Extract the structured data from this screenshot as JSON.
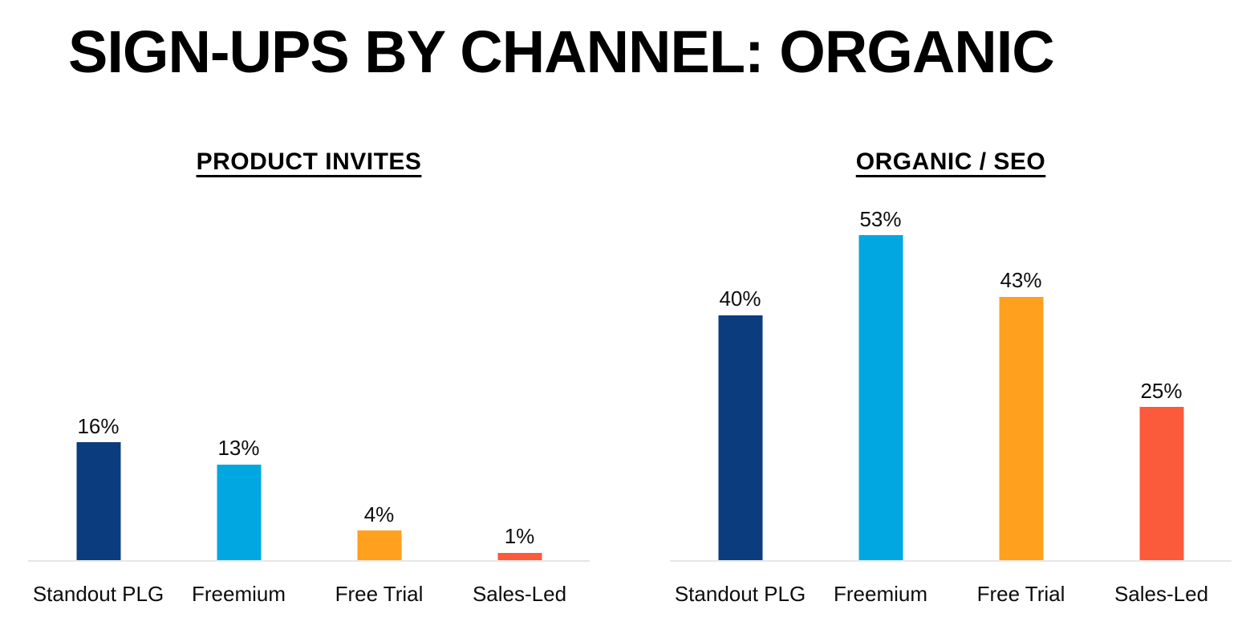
{
  "page": {
    "title": "SIGN-UPS BY CHANNEL: ORGANIC",
    "background": "#ffffff"
  },
  "styles": {
    "axis_line_color": "#e7e7e7",
    "text_color": "#000000"
  },
  "chart_data": [
    {
      "type": "bar",
      "title": "PRODUCT INVITES",
      "categories": [
        "Standout PLG",
        "Freemium",
        "Free Trial",
        "Sales-Led"
      ],
      "values": [
        16,
        13,
        4,
        1
      ],
      "value_labels": [
        "16%",
        "13%",
        "4%",
        "1%"
      ],
      "ylim": [
        0,
        50
      ],
      "bar_colors": [
        "#0B3C7D",
        "#00A7E1",
        "#FFA01E",
        "#FB5A3B"
      ],
      "grid": false,
      "legend": "none",
      "xlabel": "",
      "ylabel": ""
    },
    {
      "type": "bar",
      "title": "ORGANIC / SEO",
      "categories": [
        "Standout PLG",
        "Freemium",
        "Free Trial",
        "Sales-Led"
      ],
      "values": [
        40,
        53,
        43,
        25
      ],
      "value_labels": [
        "40%",
        "53%",
        "43%",
        "25%"
      ],
      "ylim": [
        0,
        60
      ],
      "bar_colors": [
        "#0B3C7D",
        "#00A7E1",
        "#FFA01E",
        "#FB5A3B"
      ],
      "grid": false,
      "legend": "none",
      "xlabel": "",
      "ylabel": ""
    }
  ]
}
